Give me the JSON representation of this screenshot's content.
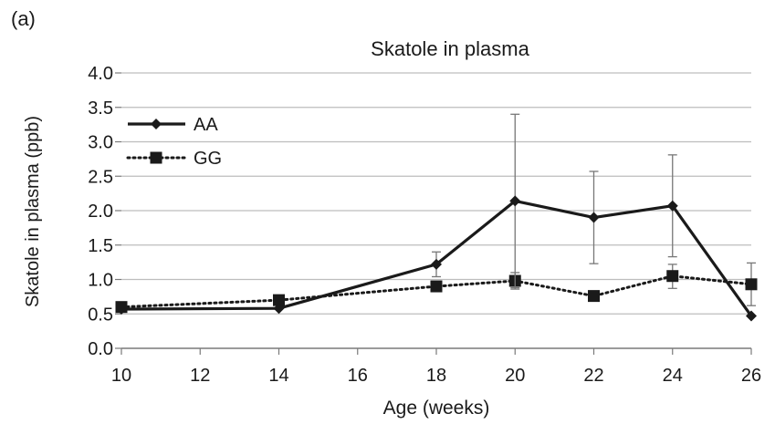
{
  "panel_label": "(a)",
  "chart_data": {
    "type": "line",
    "title": "Skatole in plasma",
    "xlabel": "Age (weeks)",
    "ylabel": "Skatole in plasma (ppb)",
    "xlim": [
      10,
      26
    ],
    "ylim": [
      0,
      4
    ],
    "xticks": [
      10,
      12,
      14,
      16,
      18,
      20,
      22,
      24,
      26
    ],
    "yticks": [
      "0.0",
      "0.5",
      "1.0",
      "1.5",
      "2.0",
      "2.5",
      "3.0",
      "3.5",
      "4.0"
    ],
    "grid": "horizontal",
    "legend_position": "top-left",
    "series": [
      {
        "name": "AA",
        "line_style": "solid",
        "marker": "diamond",
        "color": "#1a1a1a",
        "x": [
          10,
          14,
          18,
          20,
          22,
          24,
          26
        ],
        "y": [
          0.57,
          0.58,
          1.22,
          2.14,
          1.9,
          2.07,
          0.47
        ],
        "error_upper": [
          null,
          null,
          1.4,
          3.4,
          2.57,
          2.81,
          null
        ],
        "error_lower": [
          null,
          null,
          1.04,
          0.88,
          1.23,
          1.33,
          null
        ]
      },
      {
        "name": "GG",
        "line_style": "dotted",
        "marker": "square",
        "color": "#1a1a1a",
        "x": [
          10,
          14,
          18,
          20,
          22,
          24,
          26
        ],
        "y": [
          0.6,
          0.7,
          0.9,
          0.98,
          0.76,
          1.05,
          0.93
        ],
        "error_upper": [
          null,
          null,
          null,
          1.1,
          null,
          1.22,
          1.24
        ],
        "error_lower": [
          null,
          null,
          null,
          0.86,
          null,
          0.87,
          0.62
        ]
      }
    ]
  }
}
